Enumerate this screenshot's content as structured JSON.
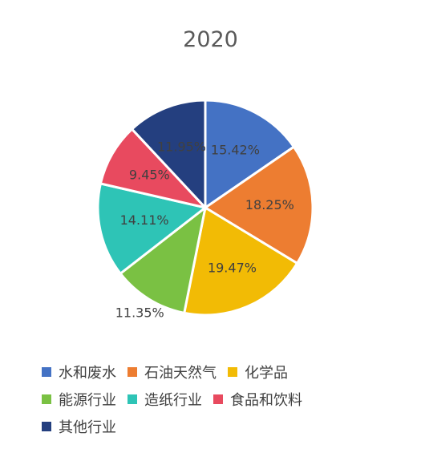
{
  "chart_data": {
    "type": "pie",
    "title": "2020",
    "slices": [
      {
        "name": "水和废水",
        "value": 15.42,
        "label": "15.42%",
        "color": "#4472C4"
      },
      {
        "name": "石油天然气",
        "value": 18.25,
        "label": "18.25%",
        "color": "#ED7D31"
      },
      {
        "name": "化学品",
        "value": 19.47,
        "label": "19.47%",
        "color": "#F2BB05"
      },
      {
        "name": "能源行业",
        "value": 11.35,
        "label": "11.35%",
        "color": "#7AC143"
      },
      {
        "name": "造纸行业",
        "value": 14.11,
        "label": "14.11%",
        "color": "#2EC4B6"
      },
      {
        "name": "食品和饮料",
        "value": 9.45,
        "label": "9.45%",
        "color": "#E84A5F"
      },
      {
        "name": "其他行业",
        "value": 11.95,
        "label": "11.95%",
        "color": "#243F7F"
      }
    ],
    "legend_position": "bottom"
  }
}
